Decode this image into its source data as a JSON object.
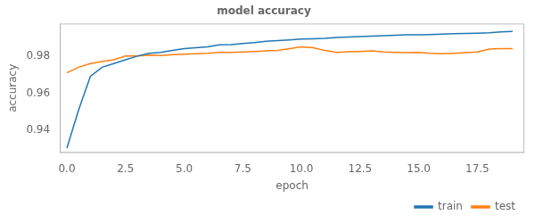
{
  "chart_data": {
    "type": "line",
    "title": "model accuracy",
    "xlabel": "epoch",
    "ylabel": "accuracy",
    "x": [
      0,
      0.5,
      1.0,
      1.5,
      2.0,
      2.5,
      3.0,
      3.5,
      4.0,
      4.5,
      5.0,
      5.5,
      6.0,
      6.5,
      7.0,
      7.5,
      8.0,
      8.5,
      9.0,
      9.5,
      10.0,
      10.5,
      11.0,
      11.5,
      12.0,
      12.5,
      13.0,
      13.5,
      14.0,
      14.5,
      15.0,
      15.5,
      16.0,
      16.5,
      17.0,
      17.5,
      18.0,
      18.5,
      19.0
    ],
    "series": [
      {
        "name": "train",
        "color": "#1f77b4",
        "values": [
          0.9305,
          0.951,
          0.969,
          0.974,
          0.976,
          0.978,
          0.98,
          0.9815,
          0.982,
          0.983,
          0.984,
          0.9845,
          0.985,
          0.986,
          0.9862,
          0.9868,
          0.9872,
          0.988,
          0.9883,
          0.9887,
          0.9892,
          0.9893,
          0.9895,
          0.99,
          0.9903,
          0.9905,
          0.9907,
          0.991,
          0.9912,
          0.9914,
          0.9915,
          0.9916,
          0.9918,
          0.992,
          0.9922,
          0.9923,
          0.9925,
          0.993,
          0.9932
        ]
      },
      {
        "name": "test",
        "color": "#ff7f0e",
        "values": [
          0.971,
          0.974,
          0.976,
          0.977,
          0.978,
          0.98,
          0.98,
          0.9805,
          0.9803,
          0.9808,
          0.981,
          0.9812,
          0.9815,
          0.982,
          0.982,
          0.9822,
          0.9825,
          0.9828,
          0.983,
          0.984,
          0.985,
          0.9845,
          0.983,
          0.982,
          0.9823,
          0.9825,
          0.9828,
          0.9822,
          0.982,
          0.9818,
          0.982,
          0.9815,
          0.9812,
          0.9815,
          0.9818,
          0.9822,
          0.9838,
          0.984,
          0.984
        ]
      }
    ],
    "xlim": [
      -0.3,
      19.5
    ],
    "ylim": [
      0.928,
      0.9975
    ],
    "xticks": [
      {
        "value": 0.0,
        "label": "0.0"
      },
      2.5,
      {
        "value": 5.0,
        "label": "5.0"
      },
      7.5,
      {
        "value": 10.0,
        "label": "10.0"
      },
      12.5,
      {
        "value": 15.0,
        "label": "15.0"
      },
      17.5
    ],
    "yticks": [
      0.94,
      0.96,
      0.98
    ],
    "legend": "lower right",
    "grid": false
  }
}
